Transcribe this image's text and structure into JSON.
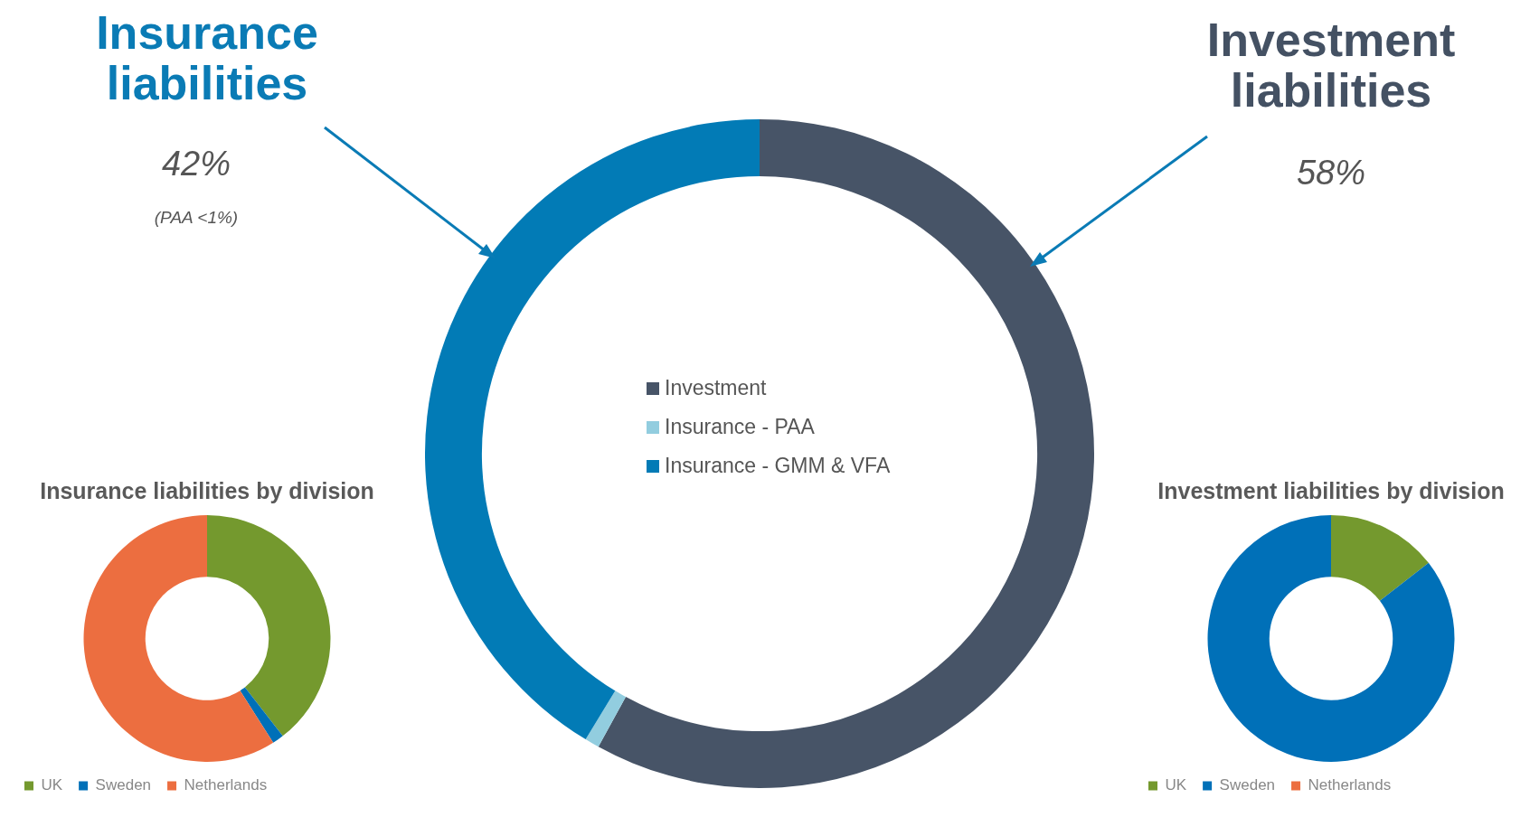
{
  "chart_data": [
    {
      "type": "donut",
      "categories": [
        "Investment",
        "Insurance - PAA",
        "Insurance - GMM & VFA"
      ],
      "values": [
        58,
        0.7,
        41.3
      ],
      "colors": [
        "#475467",
        "#92cddf",
        "#027bb6"
      ],
      "legend": "center",
      "annotations": [
        "Insurance liabilities",
        "42%",
        "(PAA <1%)",
        "Investment liabilities",
        "58%"
      ]
    },
    {
      "type": "donut",
      "title": "Insurance liabilities by division",
      "categories": [
        "UK",
        "Sweden",
        "Netherlands"
      ],
      "values": [
        39.5,
        1.5,
        59
      ],
      "colors": [
        "#74992e",
        "#0070b8",
        "#ec6e40"
      ],
      "legend": "bottom left"
    },
    {
      "type": "donut",
      "title": "Investment liabilities by division",
      "categories": [
        "UK",
        "Sweden",
        "Netherlands"
      ],
      "values": [
        14.5,
        85.5,
        0
      ],
      "colors": [
        "#74992e",
        "#0070b8",
        "#ec6e40"
      ],
      "legend": "bottom left"
    }
  ]
}
